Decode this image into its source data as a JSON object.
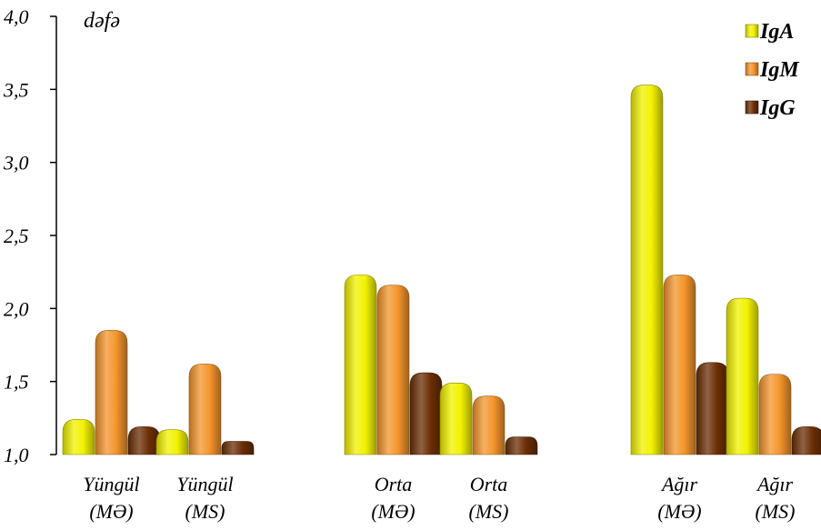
{
  "colors": {
    "IgA": "#F2F200",
    "IgM": "#F4952C",
    "IgG": "#6B2E04",
    "axis": "#000000",
    "background": "#FFFFFF"
  },
  "chart_data": {
    "type": "bar",
    "title": "",
    "ylabel": "dəfə",
    "xlabel": "",
    "ylim": [
      1.0,
      4.0
    ],
    "yticks": [
      "1,0",
      "1,5",
      "2,0",
      "2,5",
      "3,0",
      "3,5",
      "4,0"
    ],
    "ytick_values": [
      1.0,
      1.5,
      2.0,
      2.5,
      3.0,
      3.5,
      4.0
    ],
    "grid": false,
    "legend_position": "top-right",
    "categories": [
      [
        "Yüngül",
        "(MƏ)"
      ],
      [
        "Yüngül",
        "(MS)"
      ],
      [
        "Orta",
        "(MƏ)"
      ],
      [
        "Orta",
        "(MS)"
      ],
      [
        "Ağır",
        "(MƏ)"
      ],
      [
        "Ağır",
        "(MS)"
      ]
    ],
    "series": [
      {
        "name": "IgA",
        "values": [
          1.24,
          1.17,
          2.23,
          1.49,
          3.53,
          2.07
        ]
      },
      {
        "name": "IgM",
        "values": [
          1.85,
          1.62,
          2.16,
          1.4,
          2.23,
          1.55
        ]
      },
      {
        "name": "IgG",
        "values": [
          1.19,
          1.09,
          1.56,
          1.12,
          1.63,
          1.19
        ]
      }
    ]
  }
}
